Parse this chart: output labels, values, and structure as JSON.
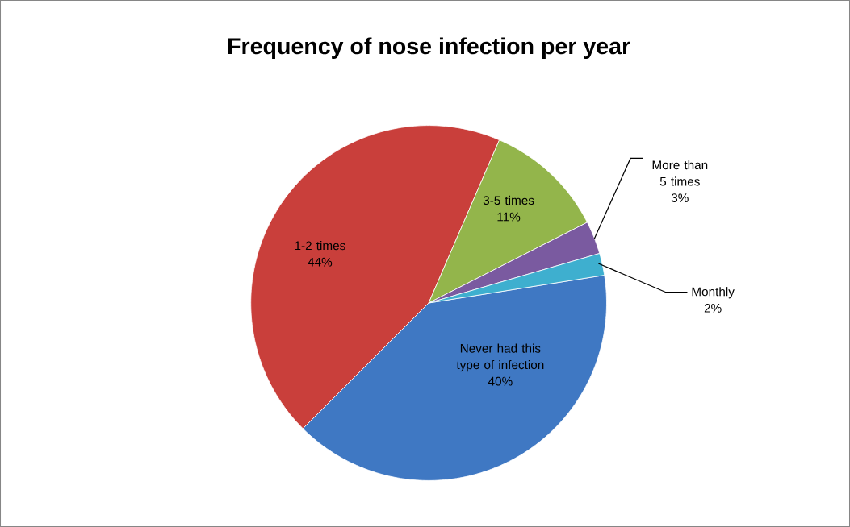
{
  "chart_data": {
    "type": "pie",
    "title": "Frequency of nose infection per year",
    "categories": [
      "Never had this type of infection",
      "1-2 times",
      "3-5 times",
      "More than 5 times",
      "Monthly"
    ],
    "values": [
      40,
      44,
      11,
      3,
      2
    ],
    "value_labels": [
      "40%",
      "44%",
      "11%",
      "3%",
      "2%"
    ],
    "colors": [
      "#3f78c3",
      "#c93f3b",
      "#93b54b",
      "#7a5aa0",
      "#3eafcf"
    ]
  }
}
